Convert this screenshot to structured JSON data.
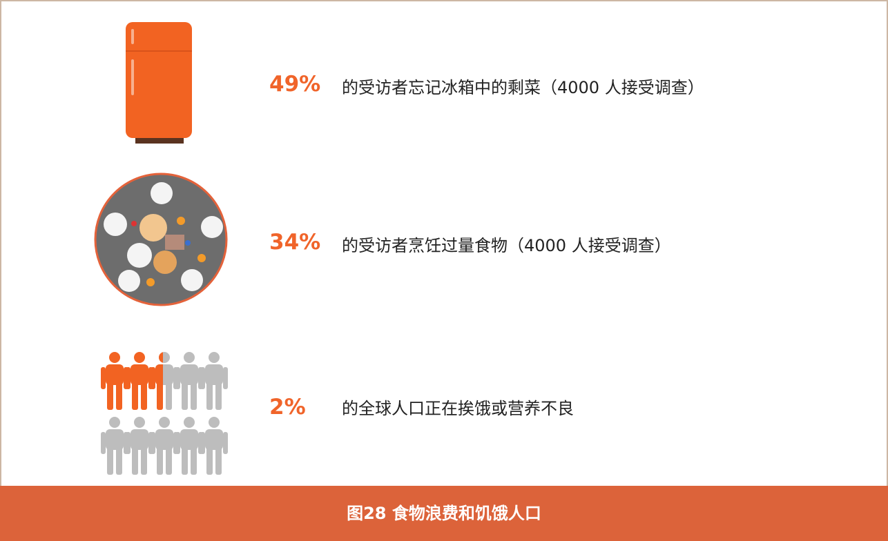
{
  "items": [
    {
      "percent": "49%",
      "text": "的受访者忘记冰箱中的剩菜（4000 人接受调查）"
    },
    {
      "percent": "34%",
      "text": "的受访者烹饪过量食物（4000 人接受调查）"
    },
    {
      "percent": "2%",
      "text": "的全球人口正在挨饿或营养不良"
    }
  ],
  "caption": "图28  食物浪费和饥饿人口"
}
